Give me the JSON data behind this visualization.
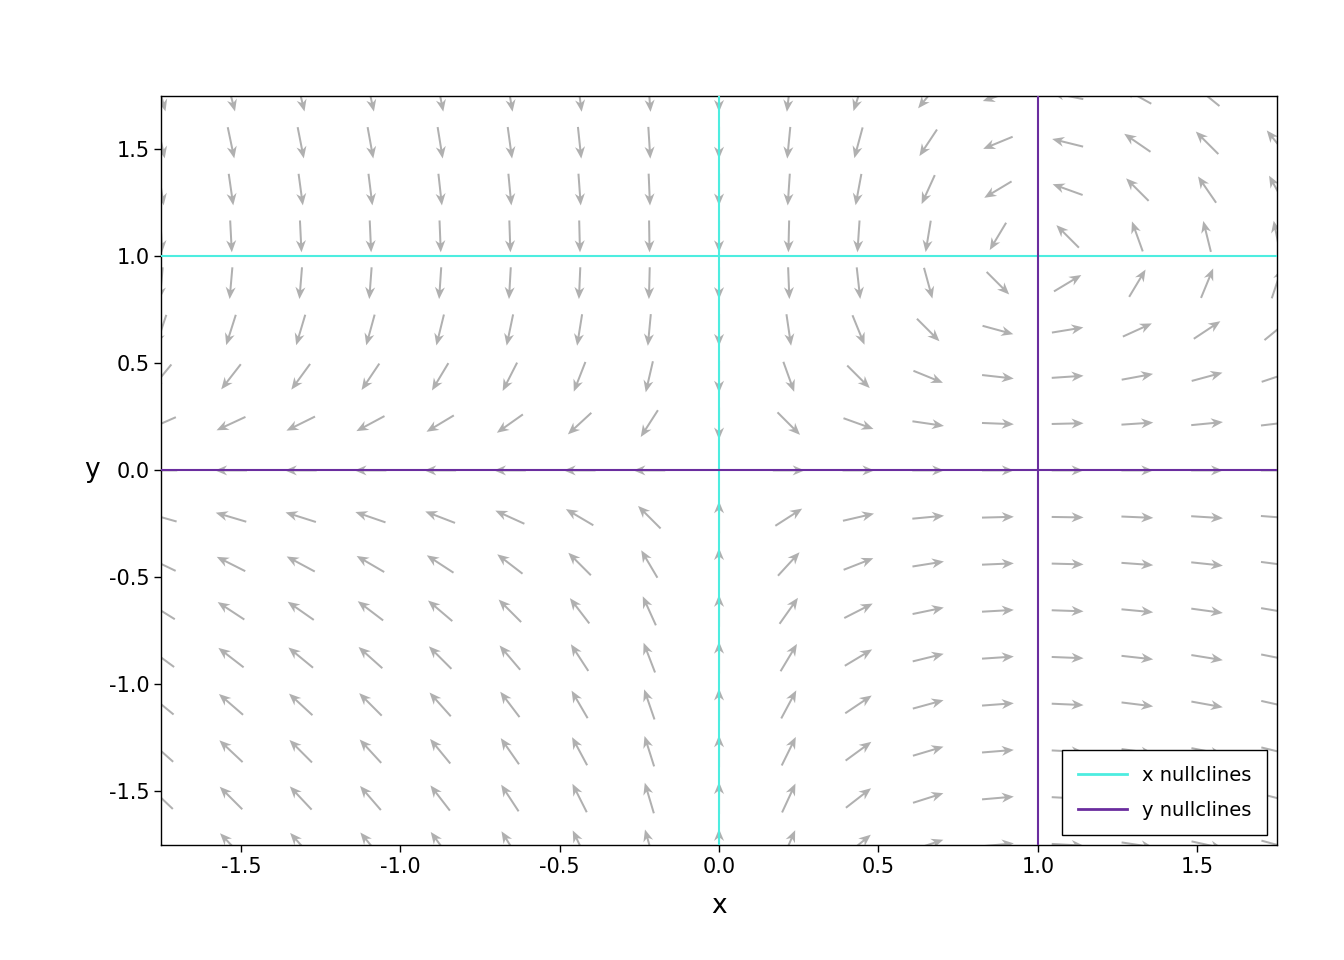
{
  "xlim": [
    -1.75,
    1.75
  ],
  "ylim": [
    -1.75,
    1.75
  ],
  "xlabel": "x",
  "ylabel": "y",
  "x_ticks": [
    -1.5,
    -1.0,
    -0.5,
    0.0,
    0.5,
    1.0,
    1.5
  ],
  "y_ticks": [
    -1.5,
    -1.0,
    -0.5,
    0.0,
    0.5,
    1.0,
    1.5
  ],
  "nullcline_x_color": "#4dede0",
  "nullcline_y_color": "#6a2d9e",
  "arrow_color": "#b0b0b0",
  "background_color": "#ffffff",
  "legend_x_label": "x nullclines",
  "legend_y_label": "y nullclines",
  "n_grid": 17,
  "figsize": [
    13.44,
    9.6
  ],
  "dpi": 100
}
